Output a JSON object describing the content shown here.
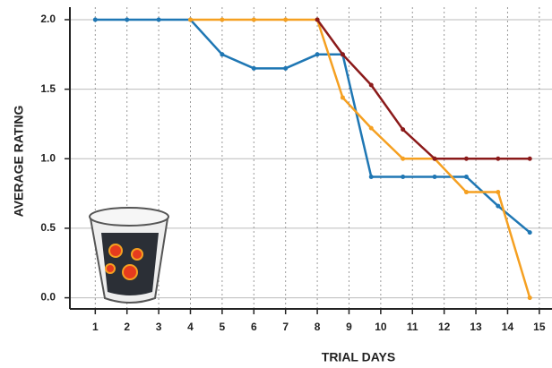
{
  "chart_data": {
    "type": "line",
    "x_label": "TRIAL DAYS",
    "y_label": "AVERAGE RATING",
    "xlim": [
      0.2,
      15.4
    ],
    "ylim": [
      -0.08,
      2.09
    ],
    "xticks": [
      1,
      2,
      3,
      4,
      5,
      6,
      7,
      8,
      9,
      10,
      11,
      12,
      13,
      14,
      15
    ],
    "yticks": [
      {
        "value": 0,
        "label": "0.0"
      },
      0.5,
      {
        "value": 1,
        "label": "1.0"
      },
      1.5,
      {
        "value": 2,
        "label": "2.0"
      }
    ],
    "grid": true,
    "series": [
      {
        "color": "#1f77b4",
        "x": [
          1,
          2,
          3,
          4,
          5,
          6,
          7,
          8,
          8.8,
          9.7,
          10.7,
          11.7,
          12.7,
          13.7,
          14.7
        ],
        "values": [
          2.0,
          2.0,
          2.0,
          2.0,
          1.75,
          1.65,
          1.65,
          1.75,
          1.75,
          0.87,
          0.87,
          0.87,
          0.87,
          0.66,
          0.47
        ]
      },
      {
        "color": "#f5a021",
        "x": [
          4,
          5,
          6,
          7,
          8,
          8.8,
          9.7,
          10.7,
          11.7,
          12.7,
          13.7,
          14.7
        ],
        "values": [
          2.0,
          2.0,
          2.0,
          2.0,
          2.0,
          1.44,
          1.22,
          1.0,
          1.0,
          0.76,
          0.76,
          0.0
        ]
      },
      {
        "color": "#8b1a1a",
        "x": [
          8,
          8.8,
          9.7,
          10.7,
          11.7,
          12.7,
          13.7,
          14.7
        ],
        "values": [
          2.0,
          1.75,
          1.53,
          1.21,
          1.0,
          1.0,
          1.0,
          1.0
        ]
      }
    ]
  }
}
